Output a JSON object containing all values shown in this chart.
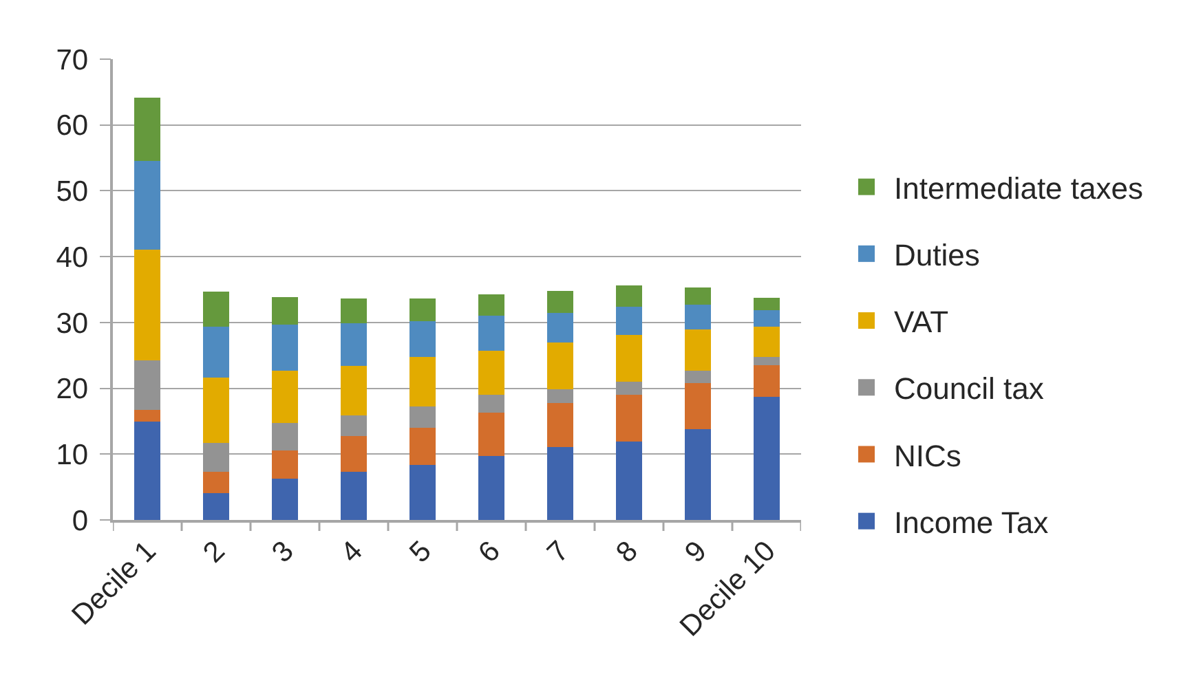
{
  "chart_data": {
    "type": "bar",
    "stacked": true,
    "categories": [
      "Decile 1",
      "2",
      "3",
      "4",
      "5",
      "6",
      "7",
      "8",
      "9",
      "Decile 10"
    ],
    "series": [
      {
        "name": "Income Tax",
        "color": "#3f65ae",
        "values": [
          14.9,
          4.1,
          6.3,
          7.3,
          8.4,
          9.7,
          11.1,
          11.9,
          13.8,
          18.7
        ]
      },
      {
        "name": "NICs",
        "color": "#d36e2c",
        "values": [
          1.8,
          3.2,
          4.3,
          5.4,
          5.6,
          6.6,
          6.7,
          7.1,
          7.0,
          4.8
        ]
      },
      {
        "name": "Council tax",
        "color": "#939393",
        "values": [
          7.5,
          4.4,
          4.1,
          3.2,
          3.2,
          2.7,
          2.1,
          2.0,
          1.9,
          1.3
        ]
      },
      {
        "name": "VAT",
        "color": "#e2ab00",
        "values": [
          16.9,
          9.9,
          8.0,
          7.5,
          7.6,
          6.7,
          7.1,
          7.1,
          6.2,
          4.6
        ]
      },
      {
        "name": "Duties",
        "color": "#4f8bc0",
        "values": [
          13.4,
          7.8,
          7.0,
          6.5,
          5.4,
          5.3,
          4.5,
          4.3,
          3.8,
          2.5
        ]
      },
      {
        "name": "Intermediate taxes",
        "color": "#65993d",
        "values": [
          9.7,
          5.3,
          4.2,
          3.7,
          3.4,
          3.3,
          3.3,
          3.2,
          2.6,
          1.8
        ]
      }
    ],
    "ylim": [
      0,
      70
    ],
    "yticks": [
      0,
      10,
      20,
      30,
      40,
      50,
      60,
      70
    ],
    "grid": "y",
    "legend": "right"
  }
}
